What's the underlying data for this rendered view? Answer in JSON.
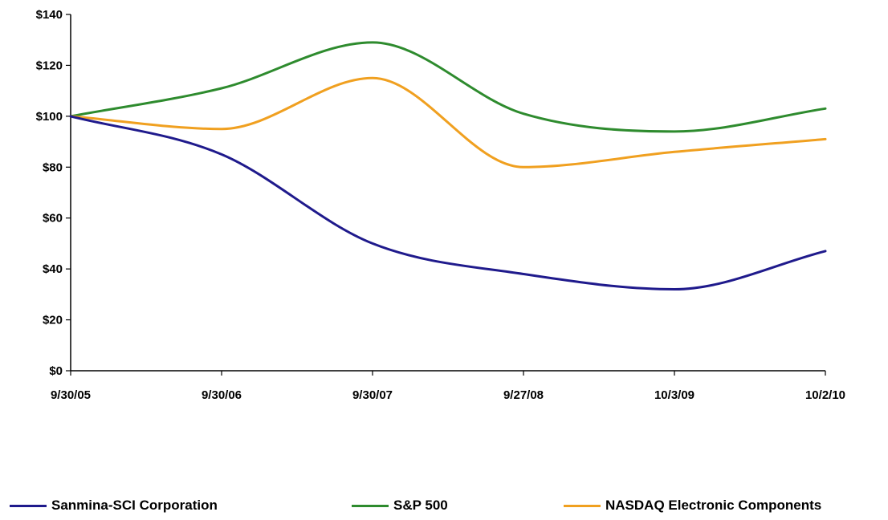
{
  "chart_data": {
    "type": "line",
    "categories": [
      "9/30/05",
      "9/30/06",
      "9/30/07",
      "9/27/08",
      "10/3/09",
      "10/2/10"
    ],
    "ylim": [
      0,
      140
    ],
    "yticks": [
      0,
      20,
      40,
      60,
      80,
      100,
      120,
      140
    ],
    "ytick_labels": [
      "$0",
      "$20",
      "$40",
      "$60",
      "$80",
      "$100",
      "$120",
      "$140"
    ],
    "grid": false,
    "legend_position": "bottom",
    "series": [
      {
        "name": "Sanmina-SCI Corporation",
        "color": "#1f1a8c",
        "values": [
          100,
          85,
          50,
          38,
          32,
          47
        ]
      },
      {
        "name": "S&P 500",
        "color": "#2e8b2e",
        "values": [
          100,
          111,
          129,
          101,
          94,
          103
        ]
      },
      {
        "name": "NASDAQ Electronic Components",
        "color": "#f0a020",
        "values": [
          100,
          95,
          115,
          80,
          86,
          91
        ]
      }
    ]
  }
}
